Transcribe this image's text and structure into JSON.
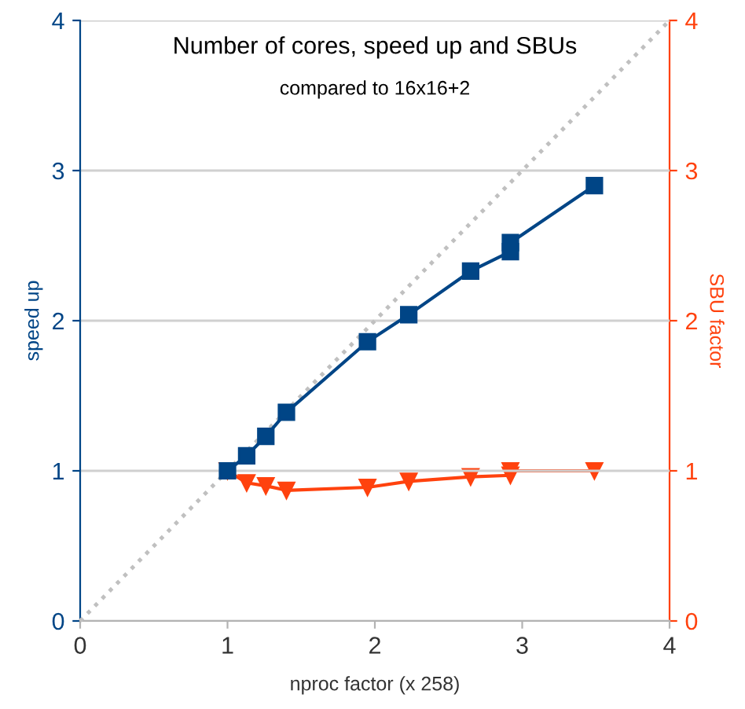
{
  "chart_data": {
    "type": "line",
    "title": "Number of cores, speed up and SBUs",
    "subtitle": "compared to 16x16+2",
    "xlabel": "nproc factor (x 258)",
    "ylabel": "speed up",
    "y2label": "SBU factor",
    "xlim": [
      0,
      4
    ],
    "xticks": [
      0,
      1,
      2,
      3,
      4
    ],
    "ylim": [
      0,
      4
    ],
    "yticks": [
      0,
      1,
      2,
      3,
      4
    ],
    "y2lim": [
      0,
      4
    ],
    "y2ticks": [
      0,
      1,
      2,
      3,
      4
    ],
    "grid": "y",
    "legend": false,
    "series": [
      {
        "color": "#c0c0c0",
        "line_style": "dotted",
        "marker": "none",
        "x": [
          0,
          4
        ],
        "values": [
          0,
          4
        ]
      },
      {
        "color": "#004586",
        "marker": "square",
        "line_style": "solid",
        "x": [
          1,
          1.13,
          1.26,
          1.4,
          1.95,
          2.23,
          2.65,
          2.92,
          2.92,
          3.49
        ],
        "values": [
          1,
          1.1,
          1.23,
          1.39,
          1.86,
          2.04,
          2.33,
          2.46,
          2.52,
          2.9
        ]
      },
      {
        "axis": "y2",
        "color": "#ff420e",
        "marker": "triangle",
        "line_style": "solid",
        "x": [
          1,
          1.13,
          1.26,
          1.4,
          1.95,
          2.23,
          2.65,
          2.92,
          2.92,
          3.49
        ],
        "values": [
          1,
          0.92,
          0.9,
          0.87,
          0.89,
          0.93,
          0.96,
          0.97,
          1.0,
          1.0
        ]
      }
    ]
  }
}
